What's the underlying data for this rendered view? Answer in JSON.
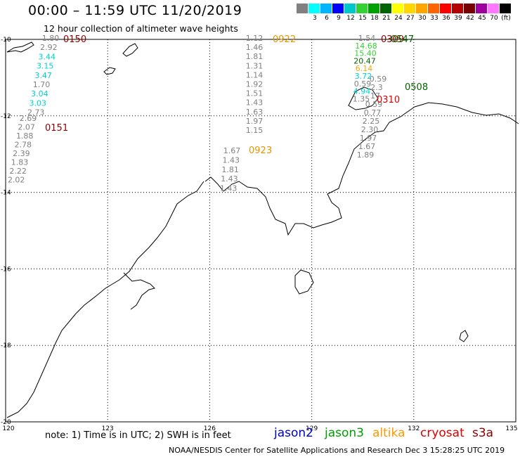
{
  "header": {
    "title": "00:00 – 11:59 UTC 11/20/2019",
    "subtitle": "12 hour collection of altimeter wave heights"
  },
  "scale": {
    "unit": "(ft)",
    "bins": [
      {
        "label": "",
        "color": "#808080"
      },
      {
        "label": "3",
        "color": "#00ffff"
      },
      {
        "label": "6",
        "color": "#00b4ff"
      },
      {
        "label": "9",
        "color": "#0000ff"
      },
      {
        "label": "12",
        "color": "#00c8c8"
      },
      {
        "label": "15",
        "color": "#32d232"
      },
      {
        "label": "18",
        "color": "#00a000"
      },
      {
        "label": "21",
        "color": "#006400"
      },
      {
        "label": "24",
        "color": "#ffff00"
      },
      {
        "label": "27",
        "color": "#ffd700"
      },
      {
        "label": "30",
        "color": "#ffa500"
      },
      {
        "label": "33",
        "color": "#ff6400"
      },
      {
        "label": "36",
        "color": "#ff0000"
      },
      {
        "label": "39",
        "color": "#b40000"
      },
      {
        "label": "42",
        "color": "#780000"
      },
      {
        "label": "45",
        "color": "#a000a0"
      },
      {
        "label": "70",
        "color": "#ff78ff"
      },
      {
        "label": "",
        "color": "#000000"
      }
    ]
  },
  "axes": {
    "lon_ticks": [
      "120",
      "123",
      "126",
      "129",
      "132",
      "135"
    ],
    "lat_ticks": [
      "-10",
      "-12",
      "-14",
      "-16",
      "-18",
      "-20"
    ],
    "lon_range": [
      120,
      135
    ],
    "lat_range": [
      -20,
      -10
    ]
  },
  "tracks": [
    {
      "time_label": "0150",
      "time_color": "#8b0000",
      "readings": [
        {
          "v": "1.80",
          "c": "#808080"
        },
        {
          "v": "2.92",
          "c": "#808080"
        },
        {
          "v": "3.44",
          "c": "#00d0d0"
        },
        {
          "v": "3.15",
          "c": "#00d0d0"
        },
        {
          "v": "3.47",
          "c": "#00d0d0"
        },
        {
          "v": "1.70",
          "c": "#808080"
        },
        {
          "v": "3.04",
          "c": "#00d0d0"
        },
        {
          "v": "3.03",
          "c": "#00d0d0"
        },
        {
          "v": "2.73",
          "c": "#808080"
        }
      ]
    },
    {
      "time_label": "0151",
      "time_color": "#8b0000",
      "readings": [
        {
          "v": "2.69",
          "c": "#808080"
        },
        {
          "v": "2.07",
          "c": "#808080"
        },
        {
          "v": "1.88",
          "c": "#808080"
        },
        {
          "v": "2.78",
          "c": "#808080"
        },
        {
          "v": "2.39",
          "c": "#808080"
        },
        {
          "v": "1.83",
          "c": "#808080"
        },
        {
          "v": "2.22",
          "c": "#808080"
        },
        {
          "v": "2.02",
          "c": "#808080"
        }
      ]
    },
    {
      "time_label": "0922",
      "time_color": "#e69500",
      "readings": [
        {
          "v": "1.12",
          "c": "#808080"
        },
        {
          "v": "1.46",
          "c": "#808080"
        },
        {
          "v": "1.81",
          "c": "#808080"
        },
        {
          "v": "1.31",
          "c": "#808080"
        },
        {
          "v": "1.14",
          "c": "#808080"
        },
        {
          "v": "1.92",
          "c": "#808080"
        },
        {
          "v": "1.51",
          "c": "#808080"
        },
        {
          "v": "1.43",
          "c": "#808080"
        },
        {
          "v": "1.63",
          "c": "#808080"
        },
        {
          "v": "1.97",
          "c": "#808080"
        },
        {
          "v": "1.15",
          "c": "#808080"
        }
      ]
    },
    {
      "time_label": "0923",
      "time_color": "#e69500",
      "readings": [
        {
          "v": "1.67",
          "c": "#808080"
        },
        {
          "v": "1.43",
          "c": "#808080"
        },
        {
          "v": "1.81",
          "c": "#808080"
        },
        {
          "v": "1.43",
          "c": "#808080"
        },
        {
          "v": "1.43",
          "c": "#808080"
        }
      ]
    },
    {
      "time_label": "0309",
      "time_color": "#8b0000",
      "readings": [
        {
          "v": "1.54",
          "c": "#808080"
        },
        {
          "v": "14.68",
          "c": "#32d232"
        },
        {
          "v": "15.40",
          "c": "#32d232"
        },
        {
          "v": "20.47",
          "c": "#006400"
        },
        {
          "v": "6.14",
          "c": "#ffa500"
        },
        {
          "v": "3.72",
          "c": "#00d0d0"
        },
        {
          "v": "0.59",
          "c": "#808080"
        },
        {
          "v": "4.94",
          "c": "#00d0d0"
        },
        {
          "v": "1.35",
          "c": "#808080"
        }
      ]
    },
    {
      "time_label": "0310",
      "time_color": "#e00000",
      "readings": [
        {
          "v": "0.59",
          "c": "#808080"
        },
        {
          "v": "2.3",
          "c": "#808080"
        },
        {
          "v": "17",
          "c": "#808080"
        },
        {
          "v": "0.59",
          "c": "#808080"
        },
        {
          "v": "0.77",
          "c": "#808080"
        },
        {
          "v": "2.25",
          "c": "#808080"
        },
        {
          "v": "2.30",
          "c": "#808080"
        },
        {
          "v": "1.97",
          "c": "#808080"
        },
        {
          "v": "1.67",
          "c": "#808080"
        },
        {
          "v": "1.89",
          "c": "#808080"
        }
      ]
    },
    {
      "time_label": "0547",
      "time_color": "#006400",
      "readings": []
    },
    {
      "time_label": "0508",
      "time_color": "#006400",
      "readings": []
    }
  ],
  "footer": {
    "note": "note: 1) Time is in UTC; 2) SWH is in feet",
    "satellites": [
      {
        "name": "jason2",
        "color": "#0000cc"
      },
      {
        "name": "jason3",
        "color": "#00a000"
      },
      {
        "name": "altika",
        "color": "#ff9900"
      },
      {
        "name": "cryosat",
        "color": "#dd0000"
      },
      {
        "name": "s3a",
        "color": "#8b0000"
      }
    ],
    "credit": "NOAA/NESDIS Center for Satellite Applications and Research    Dec  3 15:28:25 UTC 2019"
  }
}
